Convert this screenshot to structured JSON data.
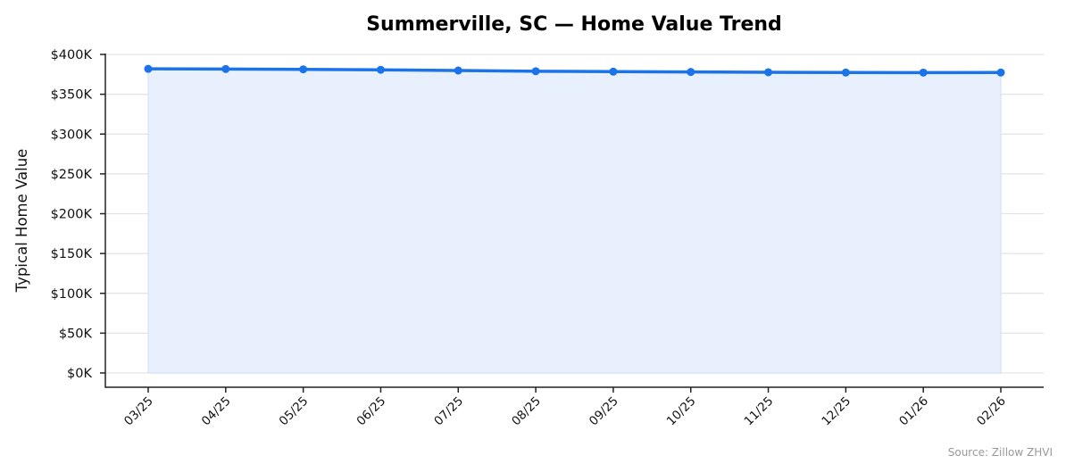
{
  "chart_data": {
    "type": "line",
    "title": "Summerville, SC — Home Value Trend",
    "xlabel": "",
    "ylabel": "Typical Home Value",
    "categories": [
      "03/25",
      "04/25",
      "05/25",
      "06/25",
      "07/25",
      "08/25",
      "09/25",
      "10/25",
      "11/25",
      "12/25",
      "01/26",
      "02/26"
    ],
    "series": [
      {
        "name": "Typical Home Value",
        "values": [
          381900,
          381700,
          381300,
          380700,
          379800,
          378900,
          378400,
          378000,
          377600,
          377300,
          377200,
          377300
        ]
      }
    ],
    "ylim": [
      0,
      400000
    ],
    "yticks": [
      0,
      50000,
      100000,
      150000,
      200000,
      250000,
      300000,
      350000,
      400000
    ],
    "ytick_labels": [
      "$0K",
      "$50K",
      "$100K",
      "$150K",
      "$200K",
      "$250K",
      "$300K",
      "$350K",
      "$400K"
    ],
    "grid": true,
    "legend": false,
    "annotation": "Source: Zillow ZHVI",
    "colors": {
      "line": "#1a73e8",
      "fill": "#e8f0fd",
      "grid": "#e3e3e3",
      "axis": "#222222"
    }
  }
}
